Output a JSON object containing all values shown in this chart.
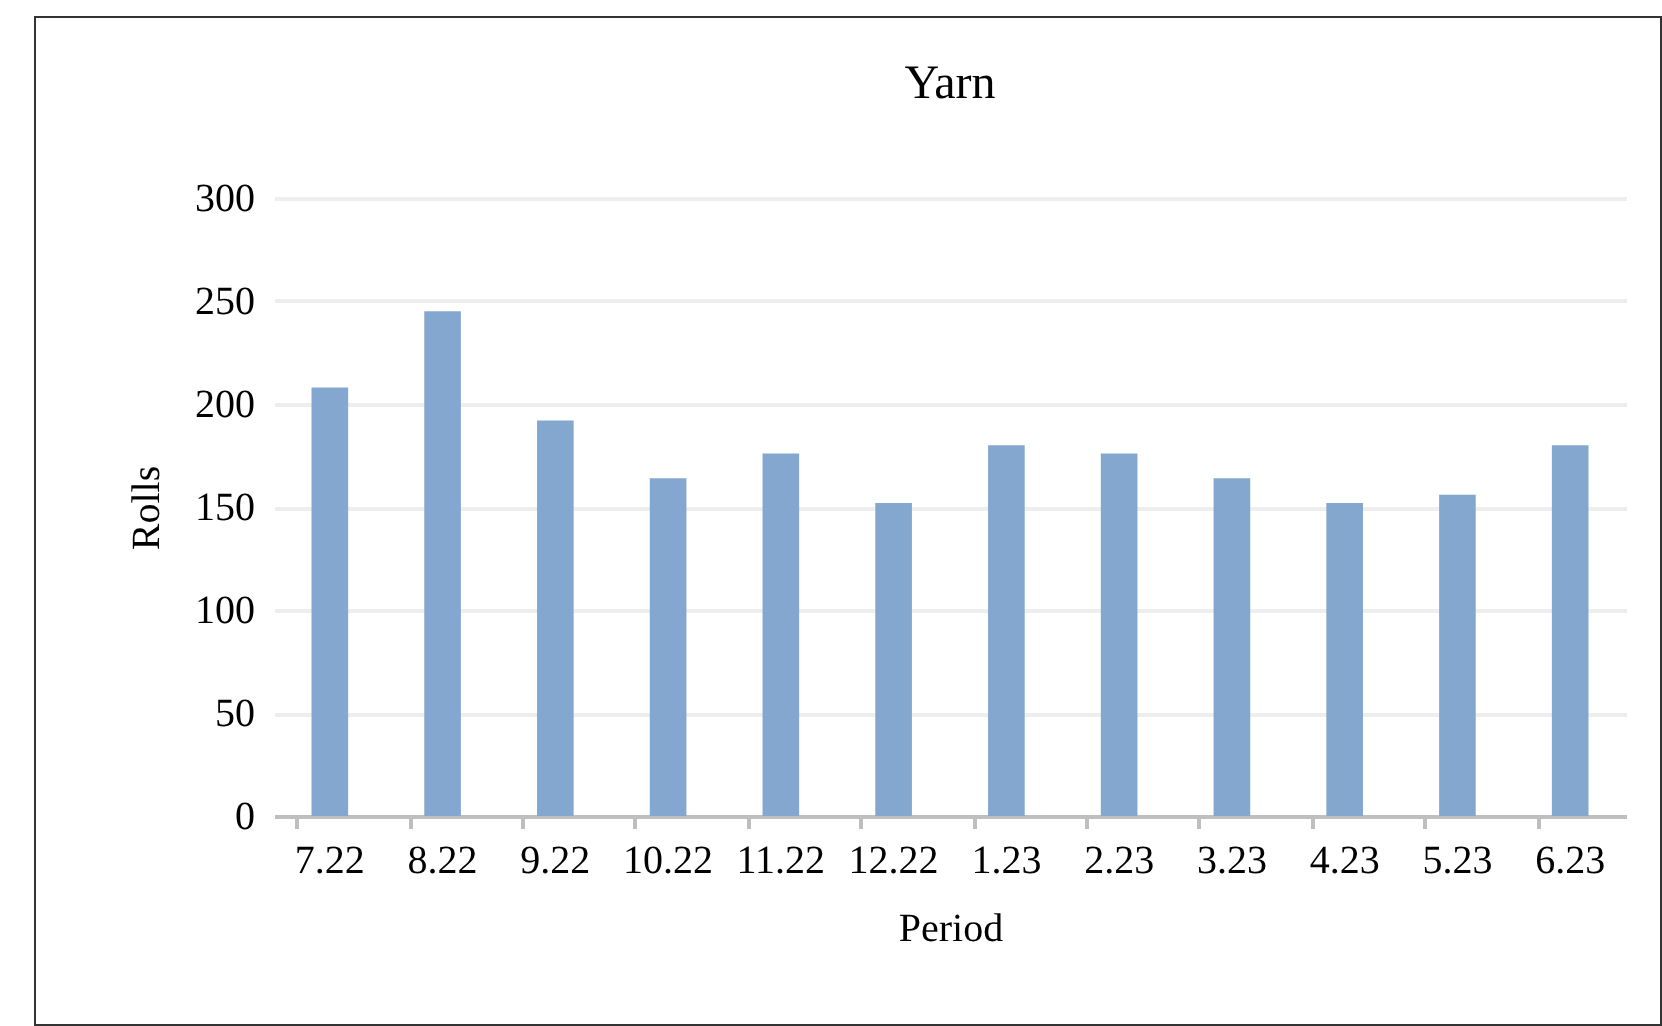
{
  "chart_data": {
    "type": "bar",
    "title": "Yarn",
    "xlabel": "Period",
    "ylabel": "Rolls",
    "categories": [
      "7.22",
      "8.22",
      "9.22",
      "10.22",
      "11.22",
      "12.22",
      "1.23",
      "2.23",
      "3.23",
      "4.23",
      "5.23",
      "6.23"
    ],
    "values": [
      208,
      245,
      192,
      164,
      176,
      152,
      180,
      176,
      164,
      152,
      156,
      180
    ],
    "color": "#84a7d0",
    "ylim": [
      0,
      300
    ],
    "yticks": [
      0,
      50,
      100,
      150,
      200,
      250,
      300
    ],
    "grid": "y"
  }
}
